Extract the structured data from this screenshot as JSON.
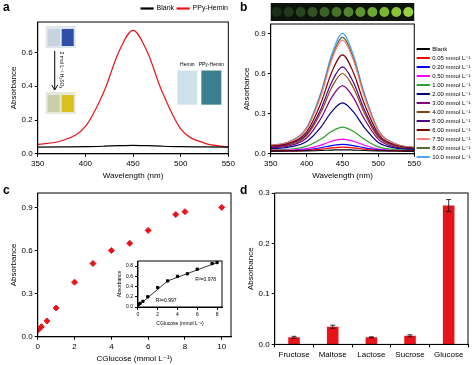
{
  "chart_data": [
    {
      "type": "line",
      "title": "a",
      "x_label": "Wavelength (nm)",
      "y_label": "Absorbance",
      "x": [
        350,
        375,
        400,
        420,
        435,
        450,
        465,
        480,
        500,
        525,
        550
      ],
      "series": [
        {
          "name": "Blank",
          "color": "#000000",
          "values": [
            0.04,
            0.041,
            0.042,
            0.045,
            0.048,
            0.05,
            0.048,
            0.045,
            0.042,
            0.041,
            0.04
          ]
        },
        {
          "name": "PPy-Hemin",
          "color": "#e8141c",
          "values": [
            0.056,
            0.077,
            0.162,
            0.375,
            0.602,
            0.73,
            0.602,
            0.375,
            0.148,
            0.063,
            0.041
          ]
        }
      ],
      "xlim": [
        350,
        550
      ],
      "xticks": [
        350,
        400,
        450,
        500,
        550
      ],
      "ylim": [
        0,
        0.78
      ],
      "yticks": [
        {
          "value": 0,
          "label": "0.0"
        },
        0.2,
        0.4,
        0.6
      ],
      "grid": false,
      "legend": "top",
      "annotations": [
        "2 mol L⁻¹ H₂SO₄",
        "Hemin",
        "PPy-Hemin"
      ]
    },
    {
      "type": "line",
      "title": "b",
      "x_label": "Wavelength (nm)",
      "y_label": "Absorbance",
      "x": [
        350,
        375,
        400,
        420,
        435,
        450,
        465,
        480,
        500,
        525,
        550
      ],
      "series": [
        {
          "name": "Blank",
          "color": "#000000",
          "values": [
            0.02,
            0.021,
            0.022,
            0.025,
            0.028,
            0.03,
            0.028,
            0.025,
            0.022,
            0.021,
            0.02
          ]
        },
        {
          "name": "0.05 mmol L⁻¹",
          "color": "#ff0000",
          "values": [
            0.022,
            0.022,
            0.026,
            0.035,
            0.045,
            0.05,
            0.045,
            0.035,
            0.025,
            0.022,
            0.021
          ]
        },
        {
          "name": "0.20 mmol L⁻¹",
          "color": "#0000ff",
          "values": [
            0.023,
            0.024,
            0.03,
            0.045,
            0.061,
            0.07,
            0.061,
            0.045,
            0.029,
            0.023,
            0.022
          ]
        },
        {
          "name": "0.50 mmol L⁻¹",
          "color": "#ff00ff",
          "values": [
            0.025,
            0.027,
            0.038,
            0.065,
            0.094,
            0.11,
            0.094,
            0.065,
            0.036,
            0.025,
            0.023
          ]
        },
        {
          "name": "1.00 mmol L⁻¹",
          "color": "#2ca02c",
          "values": [
            0.029,
            0.034,
            0.056,
            0.11,
            0.168,
            0.2,
            0.168,
            0.11,
            0.052,
            0.031,
            0.025
          ]
        },
        {
          "name": "2.00 mmol L⁻¹",
          "color": "#000080",
          "values": [
            0.038,
            0.049,
            0.092,
            0.2,
            0.315,
            0.38,
            0.315,
            0.2,
            0.085,
            0.042,
            0.031
          ]
        },
        {
          "name": "3.00 mmol L⁻¹",
          "color": "#800080",
          "values": [
            0.045,
            0.059,
            0.118,
            0.265,
            0.422,
            0.51,
            0.422,
            0.265,
            0.108,
            0.049,
            0.035
          ]
        },
        {
          "name": "4.00 mmol L⁻¹",
          "color": "#8b4513",
          "values": [
            0.049,
            0.066,
            0.136,
            0.31,
            0.496,
            0.6,
            0.496,
            0.31,
            0.124,
            0.055,
            0.037
          ]
        },
        {
          "name": "5.00 mmol L⁻¹",
          "color": "#4b0082",
          "values": [
            0.052,
            0.07,
            0.146,
            0.335,
            0.537,
            0.65,
            0.537,
            0.335,
            0.133,
            0.058,
            0.039
          ]
        },
        {
          "name": "6.00 mmol L⁻¹",
          "color": "#800000",
          "values": [
            0.056,
            0.078,
            0.164,
            0.38,
            0.61,
            0.74,
            0.61,
            0.38,
            0.15,
            0.063,
            0.042
          ]
        },
        {
          "name": "7.50 mmol L⁻¹",
          "color": "#ff7f7f",
          "values": [
            0.062,
            0.086,
            0.186,
            0.435,
            0.701,
            0.85,
            0.701,
            0.435,
            0.169,
            0.07,
            0.045
          ]
        },
        {
          "name": "8.00 mmol L⁻¹",
          "color": "#556b2f",
          "values": [
            0.063,
            0.088,
            0.19,
            0.445,
            0.717,
            0.87,
            0.717,
            0.445,
            0.173,
            0.071,
            0.046
          ]
        },
        {
          "name": "10.0 mmol L⁻¹",
          "color": "#4da6ff",
          "values": [
            0.064,
            0.09,
            0.196,
            0.46,
            0.742,
            0.9,
            0.742,
            0.46,
            0.178,
            0.073,
            0.046
          ]
        }
      ],
      "xlim": [
        350,
        550
      ],
      "xticks": [
        350,
        400,
        450,
        500,
        550
      ],
      "ylim": [
        0,
        0.97
      ],
      "yticks": [
        {
          "value": 0,
          "label": "0.0"
        },
        0.3,
        0.6,
        0.9
      ],
      "grid": false,
      "legend": "right"
    },
    {
      "type": "scatter",
      "title": "c",
      "x_label": "CGlucose (mmol L⁻¹)",
      "y_label": "Absorbance",
      "x": [
        0.05,
        0.2,
        0.5,
        1,
        2,
        3,
        4,
        5,
        6,
        7.5,
        8,
        10
      ],
      "values": [
        0.05,
        0.07,
        0.11,
        0.2,
        0.38,
        0.51,
        0.6,
        0.65,
        0.74,
        0.85,
        0.87,
        0.9
      ],
      "color": "#e8141c",
      "marker": "diamond",
      "xlim": [
        0,
        10.5
      ],
      "xticks": [
        0,
        2,
        4,
        6,
        8,
        10
      ],
      "ylim": [
        0,
        1.0
      ],
      "yticks": [
        {
          "value": 0,
          "label": "0.0"
        },
        0.3,
        0.6,
        0.9
      ],
      "grid": false,
      "inset": {
        "type": "scatter",
        "x_label": "CGlucose (mmol L⁻¹)",
        "y_label": "Absorbance",
        "x": [
          0.05,
          0.2,
          0.5,
          1,
          2,
          3,
          4,
          5,
          6,
          7.5,
          8
        ],
        "values": [
          0.05,
          0.07,
          0.11,
          0.2,
          0.38,
          0.51,
          0.6,
          0.65,
          0.74,
          0.85,
          0.87
        ],
        "color": "#000000",
        "marker": "square",
        "fits": [
          {
            "x": [
              0,
              3
            ],
            "values": [
              0.02,
              0.51
            ],
            "label": "R²=0.997",
            "color": "#000000"
          },
          {
            "x": [
              3,
              8
            ],
            "values": [
              0.51,
              0.87
            ],
            "label": "R²=0.978",
            "color": "#000000"
          }
        ],
        "xlim": [
          0,
          8.5
        ],
        "xticks": [
          0,
          2,
          4,
          6,
          8
        ],
        "ylim": [
          0,
          0.9
        ],
        "yticks": [
          {
            "value": 0,
            "label": "0.0"
          },
          0.2,
          0.4,
          0.6,
          0.8
        ],
        "grid": false
      }
    },
    {
      "type": "bar",
      "title": "d",
      "y_label": "Absorbance",
      "categories": [
        "Fructose",
        "Maltose",
        "Lactose",
        "Sucrose",
        "Glucose"
      ],
      "values": [
        0.014,
        0.035,
        0.014,
        0.017,
        0.275
      ],
      "errors": [
        0.002,
        0.003,
        0.001,
        0.002,
        0.012
      ],
      "color": "#e8141c",
      "ylim": [
        0,
        0.3
      ],
      "yticks": [
        {
          "value": 0,
          "label": "0.0"
        },
        0.1,
        0.2,
        0.3
      ],
      "grid": false
    }
  ]
}
